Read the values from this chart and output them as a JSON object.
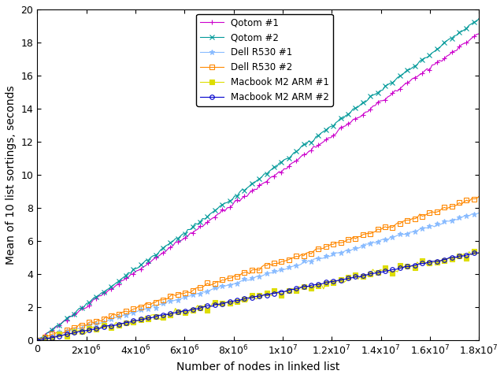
{
  "title": "",
  "xlabel": "Number of nodes in linked list",
  "ylabel": "Mean of 10 list sortings, seconds",
  "xlim": [
    0,
    18000000.0
  ],
  "ylim": [
    0,
    20
  ],
  "xticks": [
    0,
    2000000,
    4000000,
    6000000,
    8000000,
    10000000,
    12000000,
    14000000,
    16000000,
    18000000
  ],
  "yticks": [
    0,
    2,
    4,
    6,
    8,
    10,
    12,
    14,
    16,
    18,
    20
  ],
  "series": [
    {
      "label": "Qotom #1",
      "color": "#cc00cc",
      "marker": "+",
      "markersize": 5,
      "linewidth": 0.8,
      "slope": 1.03e-06,
      "noise_scale": 0.05,
      "seed": 10
    },
    {
      "label": "Qotom #2",
      "color": "#009999",
      "marker": "x",
      "markersize": 5,
      "linewidth": 0.8,
      "slope": 1.08e-06,
      "noise_scale": 0.05,
      "seed": 11
    },
    {
      "label": "Dell R530 #1",
      "color": "#88bbff",
      "marker": "*",
      "markersize": 5,
      "linewidth": 0.8,
      "slope": 4.3e-07,
      "noise_scale": 0.04,
      "seed": 12,
      "fillstyle": "full"
    },
    {
      "label": "Dell R530 #2",
      "color": "#ff8800",
      "marker": "s",
      "markersize": 4,
      "linewidth": 0.8,
      "slope": 4.8e-07,
      "noise_scale": 0.06,
      "seed": 13,
      "fillstyle": "none"
    },
    {
      "label": "Macbook M2 ARM #1",
      "color": "#dddd00",
      "marker": "s",
      "markersize": 4,
      "linewidth": 0.8,
      "slope": 2.95e-07,
      "noise_scale": 0.1,
      "seed": 14,
      "fillstyle": "full"
    },
    {
      "label": "Macbook M2 ARM #2",
      "color": "#0000cc",
      "marker": "o",
      "markersize": 4,
      "linewidth": 0.8,
      "slope": 2.95e-07,
      "noise_scale": 0.02,
      "seed": 15,
      "fillstyle": "none"
    }
  ],
  "n_points": 180,
  "x_max": 18000000.0,
  "background_color": "#ffffff",
  "legend_fontsize": 8.5,
  "axis_fontsize": 10,
  "tick_fontsize": 9
}
